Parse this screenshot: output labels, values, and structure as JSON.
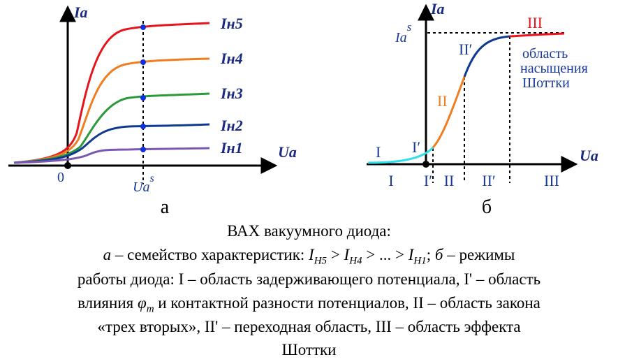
{
  "panel_a": {
    "y_label": "Ia",
    "x_label": "Ua",
    "origin": "0",
    "us_base": "Ua",
    "us_sup": "s",
    "curves": [
      "Iн5",
      "Iн4",
      "Iн3",
      "Iн2",
      "Iн1"
    ],
    "letter": "а"
  },
  "panel_b": {
    "y_label": "Ia",
    "x_label": "Ua",
    "is_base": "Ia",
    "is_sup": "s",
    "curve_regions": [
      "I",
      "I′",
      "II",
      "II′",
      "III"
    ],
    "axis_regions": [
      "I",
      "I′",
      "II",
      "II′",
      "III"
    ],
    "note": [
      "область",
      "насыщения",
      "Шоттки"
    ],
    "letter": "б"
  },
  "caption": {
    "line1": [
      "ВАХ вакуумного диода:"
    ],
    "line2": [
      "а",
      " – семейство характеристик: ",
      "I",
      "H5",
      " > ",
      "I",
      "H4",
      " > ... > ",
      "I",
      "H1",
      "; ",
      "б",
      " – режимы"
    ],
    "line3": [
      "работы диода: I – область задерживающего потенциала, I' – область"
    ],
    "line4": [
      "влияния ",
      "φ",
      "m",
      " и контактной разности потенциалов, II – область закона"
    ],
    "line5": [
      "«трех вторых», II' – переходная область, III – область эффекта"
    ],
    "line6": [
      "Шоттки"
    ]
  }
}
